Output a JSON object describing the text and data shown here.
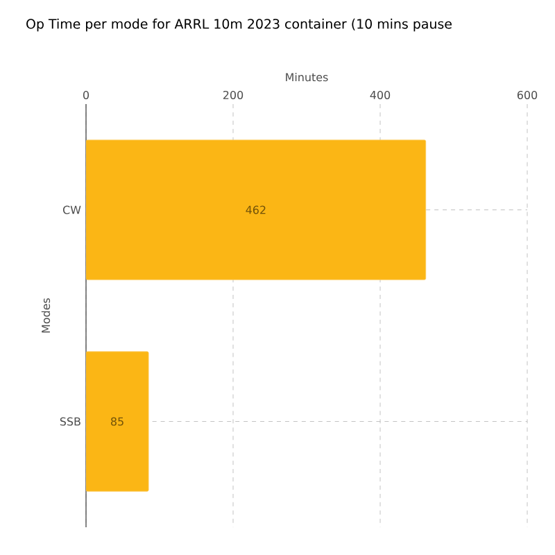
{
  "chart_data": {
    "type": "bar",
    "orientation": "horizontal",
    "title": "Op Time per mode for ARRL 10m 2023 container (10 mins pause",
    "xlabel": "Minutes",
    "ylabel": "Modes",
    "categories": [
      "CW",
      "SSB"
    ],
    "values": [
      462,
      85
    ],
    "color": "#fbb615",
    "xlim": [
      0,
      600
    ],
    "xticks": [
      0,
      200,
      400,
      600
    ],
    "grid": true,
    "data_labels": true
  }
}
